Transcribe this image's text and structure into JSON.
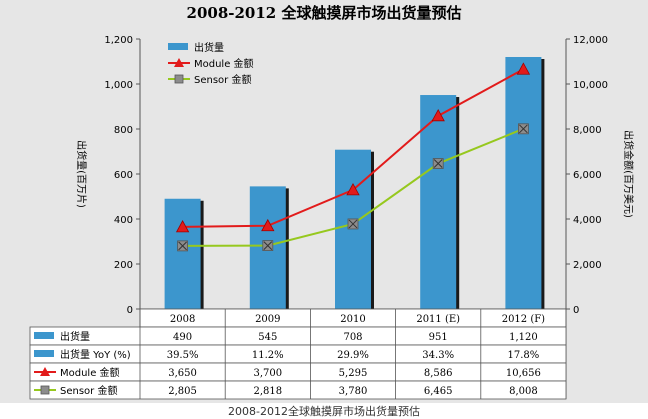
{
  "caption": "2008-2012全球触摸屏市场出货量预估",
  "colors": {
    "background": "#e6e6e6",
    "bar": "#3c96cd",
    "module_line": "#e21b1b",
    "sensor_line": "#96c81e",
    "sensor_marker": "#8c8c8c",
    "axis": "#555555"
  },
  "chart_data": {
    "type": "bar",
    "title": "2008-2012 全球触摸屏市场出货量预估",
    "categories": [
      "2008",
      "2009",
      "2010",
      "2011 (E)",
      "2012 (F)"
    ],
    "ylabel": "出货量(百万片)",
    "y2label": "出货金额(百万美元)",
    "ylim": [
      0,
      1200
    ],
    "y2lim": [
      0,
      12000
    ],
    "yticks": [
      "0",
      "200",
      "400",
      "600",
      "800",
      "1,000",
      "1,200"
    ],
    "y2ticks": [
      "0",
      "2,000",
      "4,000",
      "6,000",
      "8,000",
      "10,000",
      "12,000"
    ],
    "legend_position": "top-left",
    "series": [
      {
        "name": "出货量",
        "type": "bar",
        "axis": "left",
        "values": [
          490,
          545,
          708,
          951,
          1120
        ]
      },
      {
        "name": "Module 金额",
        "type": "line",
        "axis": "right",
        "marker": "triangle",
        "values": [
          3650,
          3700,
          5295,
          8586,
          10656
        ]
      },
      {
        "name": "Sensor 金额",
        "type": "line",
        "axis": "right",
        "marker": "square",
        "values": [
          2805,
          2818,
          3780,
          6465,
          8008
        ]
      }
    ],
    "table": {
      "rows": [
        {
          "label": "出货量",
          "key": "bar",
          "cells": [
            "490",
            "545",
            "708",
            "951",
            "1,120"
          ]
        },
        {
          "label": "出货量 YoY (%)",
          "key": "bar",
          "cells": [
            "39.5%",
            "11.2%",
            "29.9%",
            "34.3%",
            "17.8%"
          ]
        },
        {
          "label": "Module 金额",
          "key": "module",
          "cells": [
            "3,650",
            "3,700",
            "5,295",
            "8,586",
            "10,656"
          ]
        },
        {
          "label": "Sensor 金额",
          "key": "sensor",
          "cells": [
            "2,805",
            "2,818",
            "3,780",
            "6,465",
            "8,008"
          ]
        }
      ]
    }
  }
}
